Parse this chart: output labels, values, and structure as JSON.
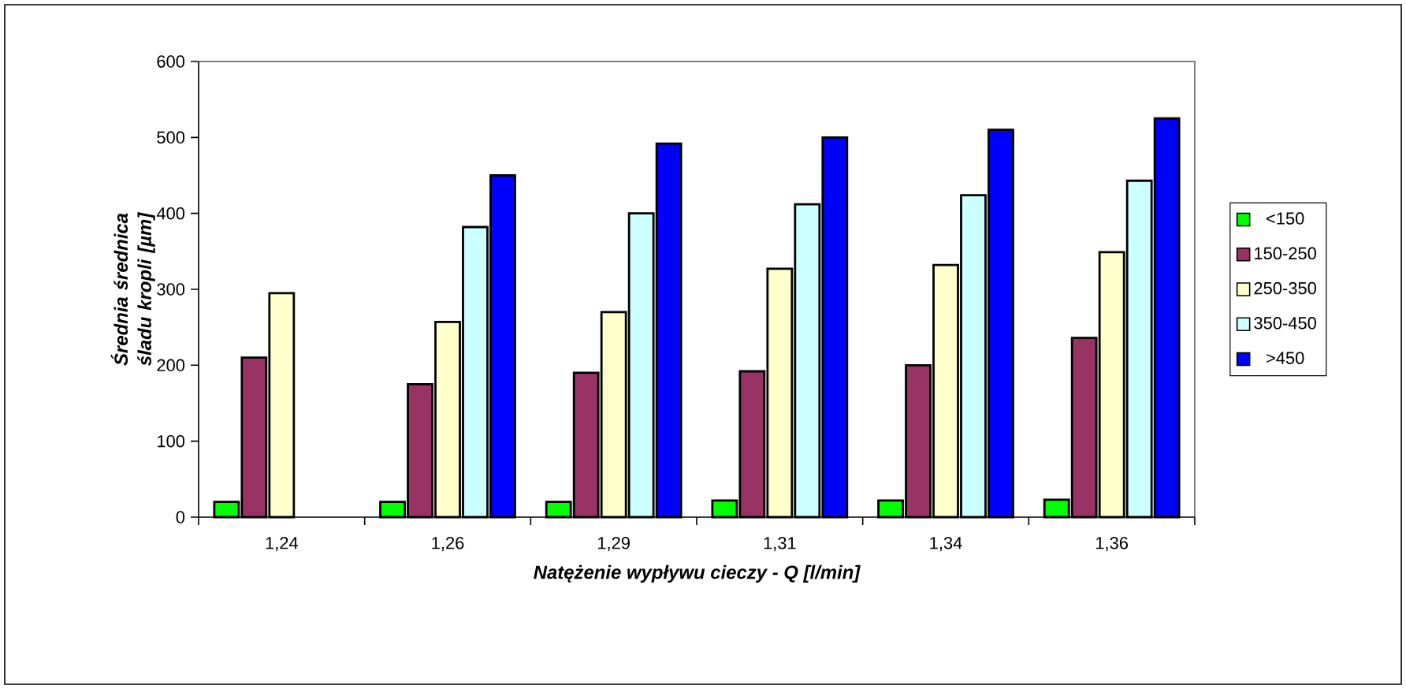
{
  "chart_data": {
    "type": "bar",
    "xlabel": "Natężenie wypływu cieczy - Q [l/min]",
    "ylabel": "Średnia średnica śladu kropli [µm]",
    "categories": [
      "1,24",
      "1,26",
      "1,29",
      "1,31",
      "1,34",
      "1,36"
    ],
    "series": [
      {
        "name": "<150",
        "color": "#00ff00",
        "values": [
          20,
          20,
          20,
          22,
          22,
          23
        ]
      },
      {
        "name": "150-250",
        "color": "#993366",
        "values": [
          210,
          175,
          190,
          192,
          200,
          236
        ]
      },
      {
        "name": "250-350",
        "color": "#ffffcc",
        "values": [
          295,
          257,
          270,
          327,
          332,
          349
        ]
      },
      {
        "name": "350-450",
        "color": "#ccffff",
        "values": [
          null,
          382,
          400,
          412,
          424,
          443
        ]
      },
      {
        "name": ">450",
        "color": "#0000ff",
        "values": [
          null,
          450,
          492,
          500,
          510,
          525
        ]
      }
    ],
    "ylim": [
      0,
      600
    ],
    "yticks": [
      0,
      100,
      200,
      300,
      400,
      500,
      600
    ],
    "grid": false,
    "legend": "right"
  }
}
